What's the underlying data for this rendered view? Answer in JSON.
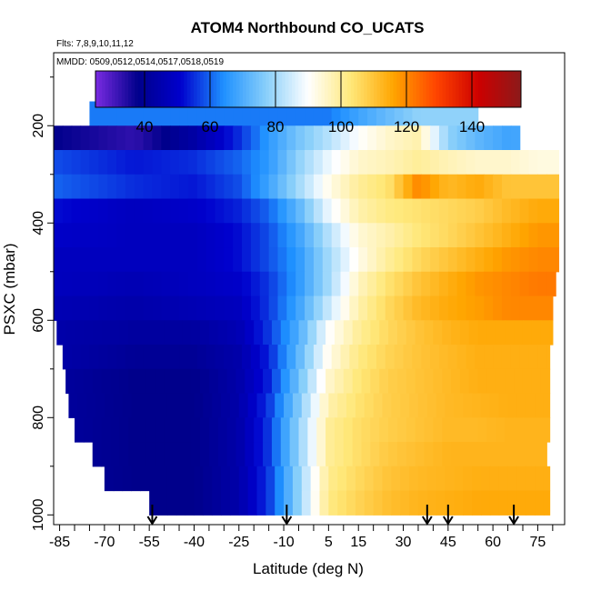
{
  "chart_data": {
    "type": "heatmap",
    "title": "ATOM4 Northbound CO_UCATS",
    "flights_note": "Flts: 7,8,9,10,11,12",
    "dates_note": "MMDD: 0509,0512,0514,0517,0518,0519",
    "xlabel": "Latitude (deg N)",
    "ylabel": "PSXC (mbar)",
    "xlim": [
      -87,
      84
    ],
    "ylim": [
      1020,
      50
    ],
    "x_ticks": [
      -85,
      -70,
      -55,
      -40,
      -25,
      -10,
      5,
      15,
      30,
      45,
      60,
      75
    ],
    "y_ticks": [
      200,
      400,
      600,
      800,
      1000
    ],
    "colorbar": {
      "range": [
        25,
        155
      ],
      "ticks": [
        40,
        60,
        80,
        100,
        120,
        140
      ],
      "colors": [
        "#7a2be2",
        "#00008b",
        "#0000cd",
        "#1e90ff",
        "#87cefa",
        "#ffffff",
        "#ffe87a",
        "#ffa500",
        "#ff4500",
        "#cd0000",
        "#8b1a1a"
      ]
    },
    "pressure_levels": [
      175,
      225,
      275,
      325,
      375,
      425,
      475,
      525,
      575,
      625,
      675,
      725,
      775,
      825,
      875,
      925,
      975
    ],
    "level_lat_ranges": [
      [
        -75,
        55
      ],
      [
        -87,
        69
      ],
      [
        -87,
        82
      ],
      [
        -87,
        82
      ],
      [
        -87,
        82
      ],
      [
        -87,
        82
      ],
      [
        -87,
        82
      ],
      [
        -87,
        81
      ],
      [
        -87,
        80
      ],
      [
        -86,
        80
      ],
      [
        -84,
        79
      ],
      [
        -83,
        79
      ],
      [
        -82,
        79
      ],
      [
        -80,
        79
      ],
      [
        -74,
        78
      ],
      [
        -70,
        79
      ],
      [
        -55,
        79
      ]
    ],
    "profile_lat": [
      -87,
      -60,
      -40,
      -25,
      -15,
      -5,
      5,
      15,
      25,
      35,
      45,
      55,
      65,
      75,
      82
    ],
    "co_profiles": [
      [
        62,
        62,
        62,
        62,
        62,
        62,
        62,
        68,
        73,
        78,
        78,
        78,
        78,
        78,
        78
      ],
      [
        38,
        33,
        43,
        55,
        66,
        75,
        82,
        90,
        95,
        98,
        78,
        72,
        68,
        70,
        70
      ],
      [
        58,
        53,
        55,
        60,
        66,
        78,
        88,
        95,
        97,
        100,
        97,
        95,
        95,
        93,
        93
      ],
      [
        60,
        55,
        53,
        58,
        68,
        80,
        92,
        100,
        104,
        120,
        112,
        115,
        110,
        110,
        110
      ],
      [
        52,
        48,
        50,
        54,
        60,
        72,
        88,
        98,
        102,
        104,
        106,
        108,
        112,
        115,
        115
      ],
      [
        50,
        48,
        48,
        52,
        58,
        68,
        82,
        94,
        98,
        103,
        106,
        110,
        114,
        118,
        118
      ],
      [
        48,
        48,
        48,
        52,
        58,
        66,
        80,
        92,
        100,
        106,
        110,
        114,
        118,
        120,
        120
      ],
      [
        48,
        46,
        48,
        50,
        56,
        66,
        80,
        96,
        104,
        110,
        114,
        118,
        120,
        122,
        122
      ],
      [
        46,
        44,
        46,
        48,
        56,
        68,
        84,
        98,
        106,
        112,
        115,
        117,
        120,
        120,
        120
      ],
      [
        44,
        42,
        42,
        46,
        56,
        70,
        90,
        100,
        106,
        110,
        113,
        115,
        115,
        115,
        115
      ],
      [
        44,
        40,
        40,
        44,
        54,
        72,
        92,
        102,
        107,
        110,
        112,
        114,
        114,
        114,
        114
      ],
      [
        42,
        38,
        38,
        44,
        54,
        74,
        95,
        103,
        108,
        110,
        112,
        114,
        114,
        114,
        114
      ],
      [
        42,
        38,
        38,
        44,
        56,
        76,
        98,
        104,
        108,
        110,
        112,
        113,
        114,
        114,
        114
      ],
      [
        42,
        38,
        38,
        44,
        56,
        78,
        100,
        105,
        108,
        110,
        112,
        112,
        113,
        113,
        113
      ],
      [
        42,
        38,
        38,
        44,
        56,
        78,
        100,
        105,
        109,
        111,
        113,
        113,
        113,
        113,
        113
      ],
      [
        42,
        38,
        38,
        44,
        56,
        78,
        101,
        106,
        110,
        112,
        113,
        114,
        114,
        114,
        114
      ],
      [
        42,
        38,
        38,
        44,
        56,
        78,
        102,
        107,
        111,
        113,
        114,
        115,
        115,
        115,
        115
      ]
    ],
    "arrow_latitudes": [
      -54,
      -9,
      38,
      45,
      67
    ]
  }
}
